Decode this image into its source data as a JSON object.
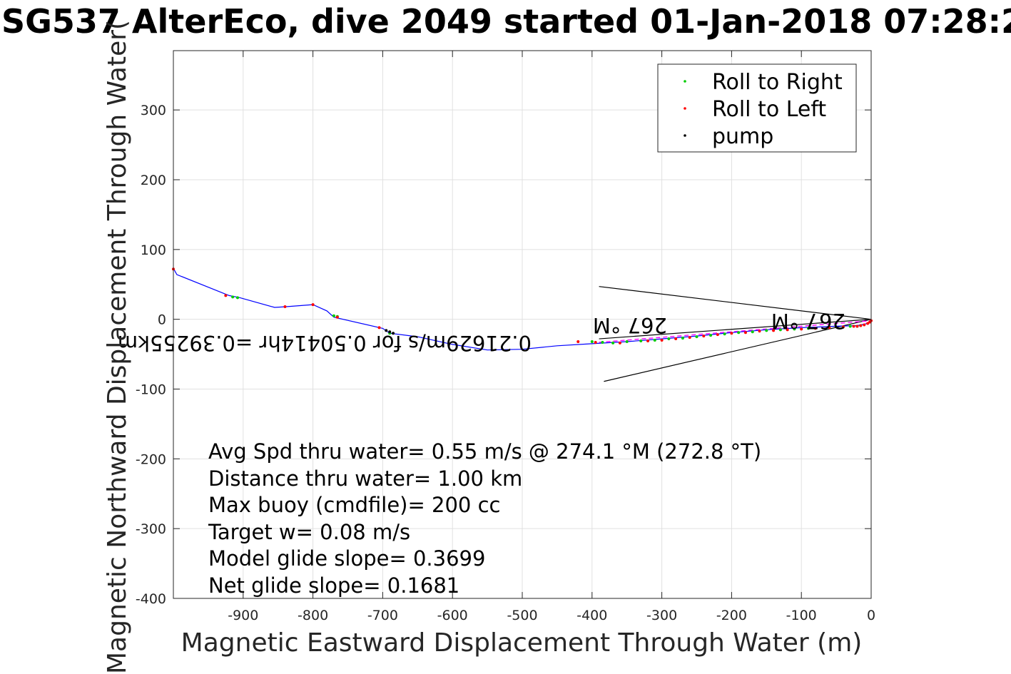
{
  "figure": {
    "title": "SG537 AlterEco, dive 2049 started 01-Jan-2018 07:28:2"
  },
  "legend": {
    "items": [
      {
        "label": "Roll to Right",
        "color": "#00cc00"
      },
      {
        "label": "Roll to Left",
        "color": "#ff0000"
      },
      {
        "label": "pump",
        "color": "#000000"
      }
    ]
  },
  "info": {
    "lines": [
      "Avg Spd thru water=  0.55 m/s @ 274.1 °M (272.8 °T)",
      "Distance thru water=  1.00 km",
      "Max buoy (cmdfile)= 200 cc",
      "Target w= 0.08 m/s",
      "Model glide slope= 0.3699",
      "Net glide slope= 0.1681"
    ]
  },
  "vector_labels": {
    "current_label": "0.21629m/s for 0.50414hr =0.39255km",
    "heading_label_1": "267 °M",
    "heading_label_2": "267 °M"
  },
  "colors": {
    "track": "#0000ff",
    "roll_right": "#00cc00",
    "roll_left": "#ff0000",
    "pump": "#000000",
    "grid": "#e0e0e0",
    "vector_magenta": "#ff00ff"
  },
  "chart_data": {
    "type": "scatter",
    "title": "SG537 AlterEco, dive 2049 started 01-Jan-2018 07:28:2",
    "xlabel": "Magnetic Eastward Displacement Through Water (m)",
    "ylabel": "Magnetic Northward Displacement Through Water(",
    "xlim": [
      -1000,
      0
    ],
    "ylim": [
      -400,
      385
    ],
    "xticks": [
      -900,
      -800,
      -700,
      -600,
      -500,
      -400,
      -300,
      -200,
      -100,
      0
    ],
    "yticks": [
      -400,
      -300,
      -200,
      -100,
      0,
      100,
      200,
      300
    ],
    "grid": true,
    "legend_position": "top-right",
    "series": [
      {
        "name": "",
        "kind": "track",
        "x": [
          -1000,
          -995,
          -920,
          -905,
          -855,
          -840,
          -800,
          -780,
          -770,
          -700,
          -690,
          -650,
          -600,
          -550,
          -500,
          -450,
          -400,
          -350,
          -300,
          -250,
          -200,
          -150,
          -100,
          -50,
          -20,
          -5,
          0
        ],
        "y": [
          73,
          64,
          34,
          31,
          17,
          18,
          21,
          12,
          3,
          -13,
          -20,
          -25,
          -36,
          -44,
          -43,
          -38,
          -35,
          -32,
          -28,
          -24,
          -19,
          -15,
          -12,
          -10,
          -9,
          -6,
          -2
        ]
      },
      {
        "name": "Roll to Right",
        "kind": "points",
        "x": [
          -915,
          -908,
          -770,
          -765,
          -690,
          -400,
          -385,
          -370,
          -350,
          -330,
          -310,
          -290,
          -270,
          -250,
          -230,
          -210,
          -190,
          -170,
          -150,
          -130,
          -110,
          -90,
          -60,
          -40,
          -30,
          -20,
          -15
        ],
        "y": [
          32,
          31,
          5,
          4,
          -20,
          -32,
          -33,
          -34,
          -32,
          -31,
          -30,
          -28,
          -27,
          -25,
          -23,
          -21,
          -19,
          -18,
          -16,
          -15,
          -14,
          -13,
          -12,
          -11,
          -10,
          -10,
          -9
        ]
      },
      {
        "name": "Roll to Left",
        "kind": "points",
        "x": [
          -1000,
          -925,
          -840,
          -800,
          -765,
          -705,
          -420,
          -395,
          -360,
          -320,
          -300,
          -280,
          -260,
          -240,
          -220,
          -200,
          -180,
          -160,
          -140,
          -120,
          -100,
          -80,
          -60,
          -40,
          -25,
          -20,
          -15,
          -10,
          -5,
          -2,
          0
        ],
        "y": [
          72,
          34,
          18,
          21,
          3,
          -12,
          -32,
          -33,
          -34,
          -31,
          -30,
          -28,
          -26,
          -24,
          -22,
          -20,
          -19,
          -17,
          -16,
          -15,
          -14,
          -13,
          -12,
          -11,
          -10,
          -10,
          -9,
          -8,
          -6,
          -4,
          -2
        ]
      },
      {
        "name": "pump",
        "kind": "points",
        "x": [
          -695,
          -690,
          -685
        ],
        "y": [
          -16,
          -18,
          -20
        ]
      }
    ],
    "vectors": [
      {
        "from": [
          0,
          0
        ],
        "to": [
          -390,
          47
        ]
      },
      {
        "from": [
          0,
          0
        ],
        "to": [
          -383,
          -89
        ]
      },
      {
        "from": [
          0,
          0
        ],
        "to": [
          -390,
          -28
        ]
      }
    ]
  }
}
